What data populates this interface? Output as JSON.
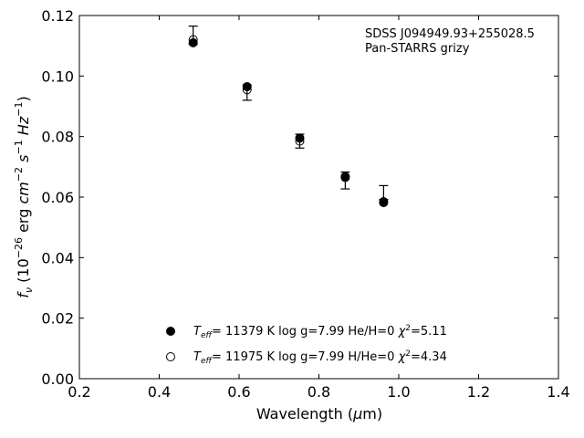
{
  "chart_data": {
    "type": "scatter",
    "title": "",
    "xlabel": "Wavelength (μm)",
    "ylabel": "fν (10⁻²⁶ erg cm⁻² s⁻¹ Hz⁻¹)",
    "xlim": [
      0.2,
      1.4
    ],
    "ylim": [
      0.0,
      0.12
    ],
    "xticks": [
      "0.2",
      "0.4",
      "0.6",
      "0.8",
      "1.0",
      "1.2",
      "1.4"
    ],
    "yticks": [
      "0.00",
      "0.02",
      "0.04",
      "0.06",
      "0.08",
      "0.10",
      "0.12"
    ],
    "grid": false,
    "annotation": [
      "SDSS J094949.93+255028.5",
      "Pan-STARRS grizy"
    ],
    "observed": {
      "x": [
        0.485,
        0.62,
        0.752,
        0.866,
        0.962
      ],
      "y": [
        0.1135,
        0.0945,
        0.0785,
        0.0655,
        0.0615
      ],
      "yerr": [
        0.003,
        0.0025,
        0.0023,
        0.0028,
        0.0023
      ]
    },
    "series": [
      {
        "marker": "filled-circle",
        "label": "T_eff= 11379 K  log g=7.99  He/H=0  χ²=5.11",
        "x": [
          0.485,
          0.62,
          0.752,
          0.866,
          0.962
        ],
        "y": [
          0.111,
          0.0965,
          0.0795,
          0.0668,
          0.0582
        ]
      },
      {
        "marker": "open-circle",
        "label": "T_eff= 11975 K  log g=7.99  H/He=0  χ²=4.34",
        "x": [
          0.485,
          0.62,
          0.752,
          0.866,
          0.962
        ],
        "y": [
          0.112,
          0.0955,
          0.0785,
          0.0665,
          0.0585
        ]
      }
    ],
    "legend": {
      "placement": "lower-center",
      "entries": [
        {
          "teff": "= 11379 K  log g=7.99  He/H=0  ",
          "chi2": "=5.11"
        },
        {
          "teff": "= 11975 K  log g=7.99  H/He=0  ",
          "chi2": "=4.34"
        }
      ]
    }
  }
}
